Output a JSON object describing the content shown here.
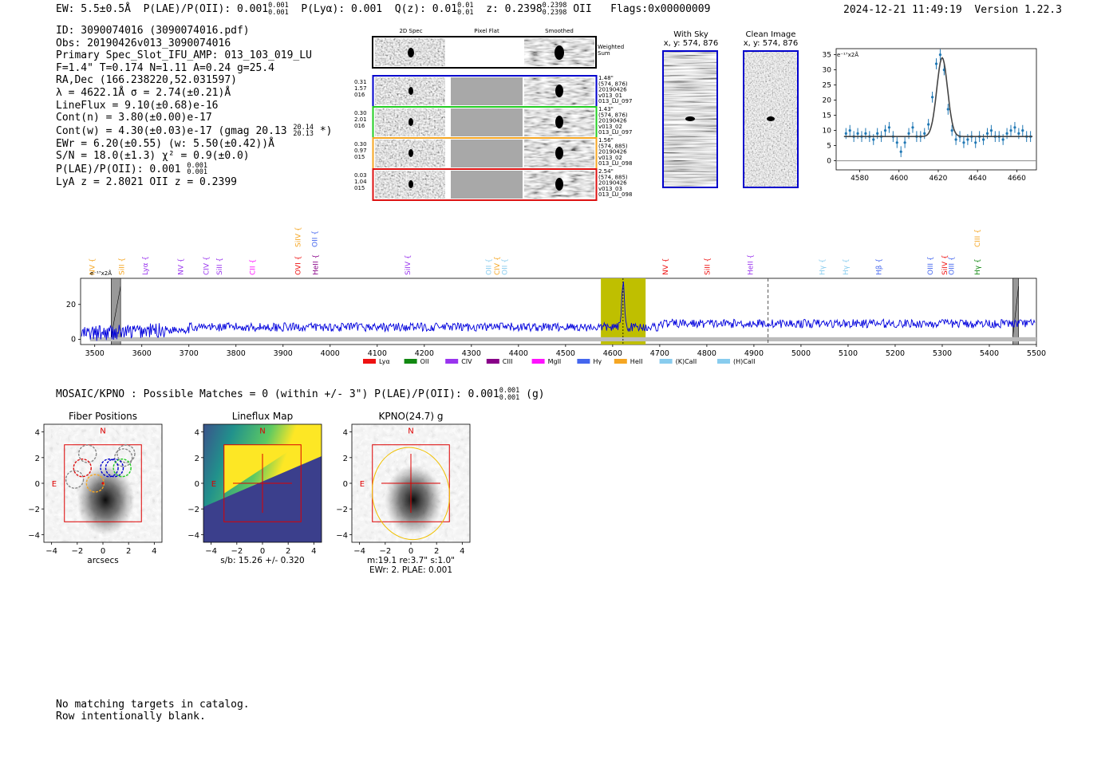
{
  "header": {
    "ew": "EW: 5.5±0.5Å",
    "plae_label": "P(LAE)/P(OII): 0.001",
    "plae_hi": "0.001",
    "plae_lo": "0.001",
    "plya": "P(Lyα): 0.001",
    "qz_label": "Q(z): 0.01",
    "qz_hi": "0.01",
    "qz_lo": "0.01",
    "z_label": "z: 0.2398",
    "z_hi": "0.2398",
    "z_lo": "0.2398",
    "z_line": "OII",
    "flags": "Flags:0x00000009",
    "datetime": "2024-12-21 11:49:19",
    "version": "Version 1.22.3"
  },
  "info": {
    "id": "ID: 3090074016 (3090074016.pdf)",
    "obs": "Obs: 20190426v013_3090074016",
    "primary": "Primary Spec_Slot_IFU_AMP: 013_103_019_LU",
    "params": "F=1.4\"  T=0.174  N=1.11  A=0.24  g=25.4",
    "radec": "RA,Dec (166.238220,52.031597)",
    "lambda": "λ = 4622.1Å   σ = 2.74(±0.21)Å",
    "lineflux": "LineFlux = 9.10(±0.68)e-16",
    "contn": "Cont(n) = 3.80(±0.00)e-17",
    "contw": "Cont(w) = 4.30(±0.03)e-17 (gmag 20.13",
    "contw_hi": "20.14",
    "contw_lo": "20.13",
    "contw_end": "*)",
    "ewr": "EWr = 6.20(±0.55) (w: 5.50(±0.42))Å",
    "sn": "S/N = 18.0(±1.3)  χ² = 0.9(±0.0)",
    "plae": "P(LAE)/P(OII): 0.001",
    "plae_hi": "0.001",
    "plae_lo": "0.001",
    "lya": "LyA z = 2.8021  OII z = 0.2399"
  },
  "cutouts": {
    "col_2d": "2D Spec",
    "col_flat": "Pixel Flat",
    "col_smooth": "Smoothed",
    "weighted": "Weighted Sum",
    "rows": [
      {
        "num1": "0.31",
        "num2": "1.57",
        "num3": "016",
        "dist": "1.48\"",
        "xy": "(574, 876)",
        "date": "20190426",
        "shot": "v013_01",
        "amp": "013_LU_097"
      },
      {
        "num1": "0.30",
        "num2": "2.01",
        "num3": "016",
        "dist": "1.43\"",
        "xy": "(574, 876)",
        "date": "20190426",
        "shot": "v013_02",
        "amp": "013_LU_097"
      },
      {
        "num1": "0.30",
        "num2": "0.97",
        "num3": "015",
        "dist": "1.56\"",
        "xy": "(574, 885)",
        "date": "20190426",
        "shot": "v013_02",
        "amp": "013_LU_098"
      },
      {
        "num1": "0.03",
        "num2": "1.04",
        "num3": "015",
        "dist": "2.54\"",
        "xy": "(574, 885)",
        "date": "20190426",
        "shot": "v013_03",
        "amp": "013_LU_098"
      }
    ]
  },
  "sky_panels": {
    "with_sky_title": "With Sky",
    "with_sky_xy": "x, y: 574, 876",
    "clean_title": "Clean Image",
    "clean_xy": "x, y: 574, 876"
  },
  "colors": {
    "row_borders": [
      "#0000cc",
      "#22cc22",
      "#f5a623",
      "#dd1111"
    ],
    "spectrum": "#0000dd",
    "fit_points": "#1f77b4",
    "highlight": "#bfbf00"
  },
  "chart_data": [
    {
      "type": "scatter",
      "name": "line-fit-zoom",
      "ylabel_units": "e⁻¹⁷x2Å",
      "xlim": [
        4568,
        4670
      ],
      "ylim": [
        -3,
        37
      ],
      "xticks": [
        4580,
        4600,
        4620,
        4640,
        4660
      ],
      "yticks": [
        0,
        5,
        10,
        15,
        20,
        25,
        30,
        35
      ],
      "continuum": 8,
      "peak_center": 4622,
      "peak_amp": 26,
      "peak_sigma": 2.74,
      "points_x": [
        4573,
        4575,
        4577,
        4579,
        4581,
        4583,
        4585,
        4587,
        4589,
        4591,
        4593,
        4595,
        4597,
        4599,
        4601,
        4603,
        4605,
        4607,
        4609,
        4611,
        4613,
        4615,
        4617,
        4619,
        4621,
        4623,
        4625,
        4627,
        4629,
        4631,
        4633,
        4635,
        4637,
        4639,
        4641,
        4643,
        4645,
        4647,
        4649,
        4651,
        4653,
        4655,
        4657,
        4659,
        4661,
        4663,
        4665,
        4667
      ],
      "points_y": [
        9,
        10,
        8,
        9,
        8,
        9,
        8,
        7,
        9,
        8,
        10,
        11,
        8,
        6,
        3,
        6,
        9,
        11,
        8,
        8,
        9,
        12,
        21,
        32,
        35,
        30,
        17,
        10,
        7,
        8,
        6,
        7,
        8,
        6,
        8,
        7,
        9,
        10,
        8,
        8,
        7,
        9,
        10,
        11,
        9,
        10,
        8,
        8
      ]
    },
    {
      "type": "line",
      "name": "full-spectrum",
      "units": "e⁻¹⁷x2Å",
      "xlim": [
        3470,
        5500
      ],
      "ylim": [
        -3,
        35
      ],
      "xticks": [
        3500,
        3600,
        3700,
        3800,
        3900,
        4000,
        4100,
        4200,
        4300,
        4400,
        4500,
        4600,
        4700,
        4800,
        4900,
        5000,
        5100,
        5200,
        5300,
        5400,
        5500
      ],
      "yticks": [
        0,
        20
      ],
      "continuum": 7,
      "peak_center": 4622,
      "peak_amp": 26,
      "highlight_range": [
        4575,
        4670
      ],
      "vline_solid": 4622,
      "vline_dashed": 4930,
      "masked_ranges": [
        [
          3535,
          3555
        ],
        [
          5450,
          5462
        ]
      ],
      "legend": [
        {
          "label": "Lyα",
          "color": "#ee1111"
        },
        {
          "label": "OII",
          "color": "#118811"
        },
        {
          "label": "CIV",
          "color": "#9933ee"
        },
        {
          "label": "CIII",
          "color": "#880088"
        },
        {
          "label": "MgII",
          "color": "#ff11ff"
        },
        {
          "label": "Hγ",
          "color": "#4466ee"
        },
        {
          "label": "HeII",
          "color": "#f5a623"
        },
        {
          "label": "(K)CaII",
          "color": "#88ccee"
        },
        {
          "label": "(H)CaII",
          "color": "#88ccee"
        }
      ],
      "line_markers": [
        {
          "label": "NV",
          "x": 3500,
          "color": "#f5a623",
          "tier": 1
        },
        {
          "label": "SiII",
          "x": 3562,
          "color": "#f5a623",
          "tier": 1
        },
        {
          "label": "Lyα",
          "x": 3612,
          "color": "#9933ee",
          "tier": 1
        },
        {
          "label": "NV",
          "x": 3688,
          "color": "#9933ee",
          "tier": 1
        },
        {
          "label": "CIV",
          "x": 3742,
          "color": "#9933ee",
          "tier": 1
        },
        {
          "label": "SiII",
          "x": 3770,
          "color": "#9933ee",
          "tier": 1
        },
        {
          "label": "CII",
          "x": 3840,
          "color": "#ff11ff",
          "tier": 1
        },
        {
          "label": "SiIV",
          "x": 3937,
          "color": "#f5a623",
          "tier": 2
        },
        {
          "label": "OII",
          "x": 3972,
          "color": "#4466ee",
          "tier": 2
        },
        {
          "label": "OVI",
          "x": 3937,
          "color": "#ee1111",
          "tier": 1
        },
        {
          "label": "HeII",
          "x": 3974,
          "color": "#880088",
          "tier": 1
        },
        {
          "label": "SiIV",
          "x": 4170,
          "color": "#9933ee",
          "tier": 1
        },
        {
          "label": "OII",
          "x": 4342,
          "color": "#88ccee",
          "tier": 1
        },
        {
          "label": "CIV",
          "x": 4360,
          "color": "#f5a623",
          "tier": 1
        },
        {
          "label": "OII",
          "x": 4376,
          "color": "#88ccee",
          "tier": 1
        },
        {
          "label": "NV",
          "x": 4717,
          "color": "#ee1111",
          "tier": 1
        },
        {
          "label": "SiII",
          "x": 4806,
          "color": "#ee1111",
          "tier": 1
        },
        {
          "label": "HeII",
          "x": 4898,
          "color": "#9933ee",
          "tier": 1
        },
        {
          "label": "Hγ",
          "x": 5050,
          "color": "#88ccee",
          "tier": 1
        },
        {
          "label": "Hγ",
          "x": 5100,
          "color": "#88ccee",
          "tier": 1
        },
        {
          "label": "Hβ",
          "x": 5170,
          "color": "#4466ee",
          "tier": 1
        },
        {
          "label": "OIII",
          "x": 5280,
          "color": "#4466ee",
          "tier": 1
        },
        {
          "label": "SiIV",
          "x": 5310,
          "color": "#ee1111",
          "tier": 1
        },
        {
          "label": "OIII",
          "x": 5325,
          "color": "#4466ee",
          "tier": 1
        },
        {
          "label": "Hγ",
          "x": 5380,
          "color": "#118811",
          "tier": 1
        },
        {
          "label": "CIII",
          "x": 5380,
          "color": "#f5a623",
          "tier": 2
        }
      ]
    },
    {
      "type": "heatmap",
      "name": "imaging-cutouts",
      "panels": [
        {
          "title": "Fiber Positions",
          "xlabel": "arcsecs",
          "sub": ""
        },
        {
          "title": "Lineflux Map",
          "xlabel": "s/b: 15.26 +/- 0.320",
          "sub": ""
        },
        {
          "title": "KPNO(24.7) g",
          "xlabel": "m:19.1  re:3.7\"  s:1.0\"",
          "sub": "EWr: 2. PLAE: 0.001"
        }
      ],
      "xlim": [
        -4.6,
        4.6
      ],
      "ylim": [
        -4.6,
        4.6
      ],
      "ticks": [
        -4,
        -2,
        0,
        2,
        4
      ],
      "compass_n": "N",
      "compass_e": "E"
    }
  ],
  "mosaic": {
    "text": "MOSAIC/KPNO : Possible Matches = 0 (within +/- 3\")  P(LAE)/P(OII): 0.001",
    "hi": "0.001",
    "lo": "0.001",
    "band": "(g)"
  },
  "footer": {
    "line1": "No matching targets in catalog.",
    "line2": "Row intentionally blank."
  }
}
